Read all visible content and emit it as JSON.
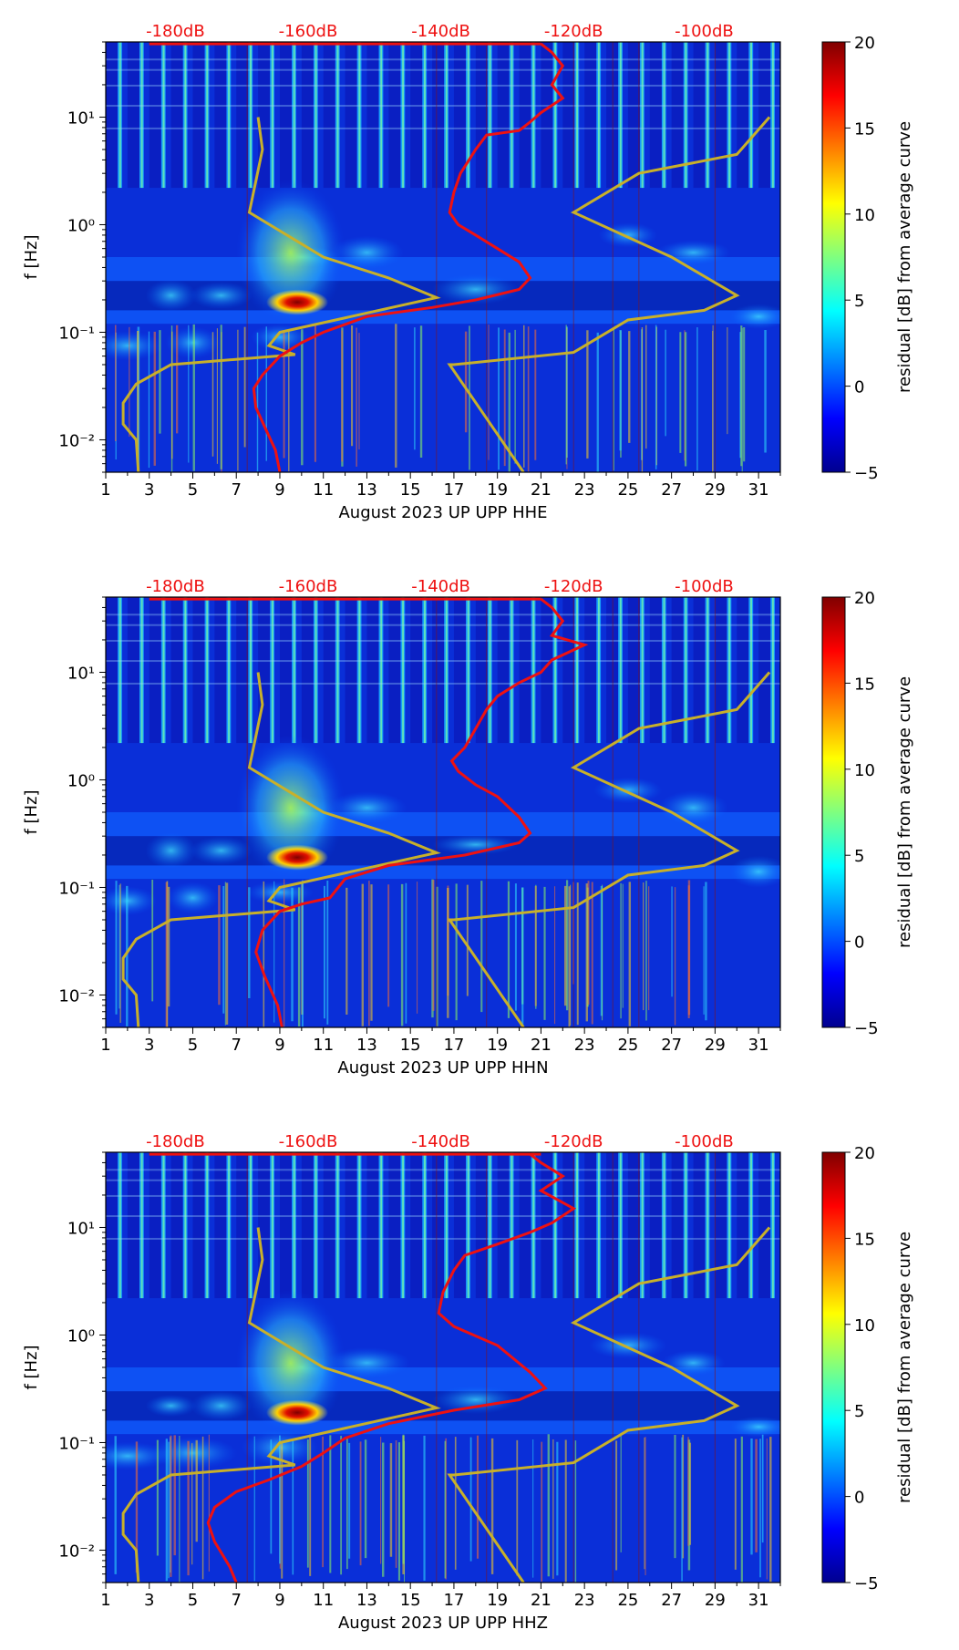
{
  "colors": {
    "psd_curve": "#ee1111",
    "noise_model": "#c8b02a",
    "db_label": "#ee1111",
    "low": "#00008f",
    "high": "#800000"
  },
  "colorbar": {
    "label": "residual [dB] from average curve",
    "range": [
      -5,
      20
    ],
    "ticks": [
      "20",
      "15",
      "10",
      "5",
      "0",
      "−5"
    ]
  },
  "chart_data": [
    {
      "type": "heatmap",
      "title": "",
      "xlabel": "August 2023 UP UPP  HHE",
      "ylabel": "f [Hz]",
      "x_range": [
        1,
        32
      ],
      "y_range_hz": [
        0.005,
        50
      ],
      "y_scale": "log",
      "x_tick_labels": [
        "1",
        "3",
        "5",
        "7",
        "9",
        "11",
        "13",
        "15",
        "17",
        "19",
        "21",
        "23",
        "25",
        "27",
        "29",
        "31"
      ],
      "y_tick_labels": [
        "10⁻²",
        "10⁻¹",
        "10⁰",
        "10¹"
      ],
      "db_axis_labels": [
        "-180dB",
        "-160dB",
        "-140dB",
        "-120dB",
        "-100dB"
      ],
      "hot_spot": {
        "day": 9.8,
        "freq_hz": 0.19,
        "value_db": 20
      },
      "psd_curve": {
        "name": "average PSD",
        "points": [
          [
            21,
            48
          ],
          [
            21.5,
            40
          ],
          [
            22,
            30
          ],
          [
            21.5,
            20
          ],
          [
            22,
            15
          ],
          [
            21,
            11
          ],
          [
            20.5,
            9
          ],
          [
            20,
            7.5
          ],
          [
            18.5,
            6.8
          ],
          [
            18,
            5
          ],
          [
            17.3,
            3
          ],
          [
            17,
            2
          ],
          [
            16.8,
            1.3
          ],
          [
            17.2,
            1
          ],
          [
            18,
            0.8
          ],
          [
            19,
            0.6
          ],
          [
            20,
            0.45
          ],
          [
            20.5,
            0.32
          ],
          [
            20,
            0.25
          ],
          [
            18,
            0.2
          ],
          [
            16,
            0.17
          ],
          [
            13,
            0.14
          ],
          [
            11,
            0.1
          ],
          [
            10,
            0.08
          ],
          [
            9,
            0.06
          ],
          [
            8.2,
            0.04
          ],
          [
            7.8,
            0.03
          ],
          [
            7.9,
            0.02
          ],
          [
            8.4,
            0.012
          ],
          [
            8.8,
            0.008
          ],
          [
            9,
            0.005
          ]
        ]
      },
      "noise_models": [
        {
          "name": "low noise model",
          "points": [
            [
              8,
              10
            ],
            [
              8.2,
              5
            ],
            [
              7.6,
              1.3
            ],
            [
              11,
              0.5
            ],
            [
              14,
              0.32
            ],
            [
              16.2,
              0.21
            ],
            [
              9,
              0.1
            ],
            [
              8.5,
              0.075
            ],
            [
              9.7,
              0.062
            ],
            [
              4,
              0.05
            ],
            [
              2.4,
              0.033
            ],
            [
              1.8,
              0.022
            ],
            [
              1.8,
              0.014
            ],
            [
              2.4,
              0.01
            ],
            [
              2.5,
              0.005
            ]
          ]
        },
        {
          "name": "high noise model",
          "points": [
            [
              31.5,
              10
            ],
            [
              30,
              4.5
            ],
            [
              25.5,
              3
            ],
            [
              22.5,
              1.3
            ],
            [
              27,
              0.5
            ],
            [
              30,
              0.22
            ],
            [
              28.5,
              0.16
            ],
            [
              25,
              0.13
            ],
            [
              22.5,
              0.065
            ],
            [
              17,
              0.05
            ],
            [
              16.8,
              0.05
            ],
            [
              20.2,
              0.005
            ]
          ]
        }
      ]
    },
    {
      "type": "heatmap",
      "title": "",
      "xlabel": "August 2023 UP UPP  HHN",
      "ylabel": "f [Hz]",
      "x_range": [
        1,
        32
      ],
      "y_range_hz": [
        0.005,
        50
      ],
      "y_scale": "log",
      "x_tick_labels": [
        "1",
        "3",
        "5",
        "7",
        "9",
        "11",
        "13",
        "15",
        "17",
        "19",
        "21",
        "23",
        "25",
        "27",
        "29",
        "31"
      ],
      "y_tick_labels": [
        "10⁻²",
        "10⁻¹",
        "10⁰",
        "10¹"
      ],
      "db_axis_labels": [
        "-180dB",
        "-160dB",
        "-140dB",
        "-120dB",
        "-100dB"
      ],
      "hot_spot": {
        "day": 9.8,
        "freq_hz": 0.19,
        "value_db": 18
      },
      "psd_curve": {
        "name": "average PSD",
        "points": [
          [
            21,
            48
          ],
          [
            21.5,
            40
          ],
          [
            22,
            30
          ],
          [
            21.5,
            22
          ],
          [
            23,
            18
          ],
          [
            21.5,
            13
          ],
          [
            21,
            10
          ],
          [
            20,
            8
          ],
          [
            19,
            6
          ],
          [
            18.5,
            4.5
          ],
          [
            18,
            3
          ],
          [
            17.5,
            2
          ],
          [
            16.9,
            1.5
          ],
          [
            17.2,
            1.2
          ],
          [
            18,
            0.9
          ],
          [
            19,
            0.7
          ],
          [
            20,
            0.45
          ],
          [
            20.5,
            0.32
          ],
          [
            20,
            0.26
          ],
          [
            17.5,
            0.2
          ],
          [
            14,
            0.16
          ],
          [
            12,
            0.12
          ],
          [
            11.3,
            0.08
          ],
          [
            10,
            0.07
          ],
          [
            9,
            0.06
          ],
          [
            8.2,
            0.04
          ],
          [
            7.9,
            0.025
          ],
          [
            8.3,
            0.015
          ],
          [
            8.9,
            0.008
          ],
          [
            9.1,
            0.005
          ]
        ]
      },
      "noise_models": [
        {
          "name": "low noise model",
          "points": [
            [
              8,
              10
            ],
            [
              8.2,
              5
            ],
            [
              7.6,
              1.3
            ],
            [
              11,
              0.5
            ],
            [
              14,
              0.32
            ],
            [
              16.2,
              0.21
            ],
            [
              9,
              0.1
            ],
            [
              8.5,
              0.075
            ],
            [
              9.7,
              0.062
            ],
            [
              4,
              0.05
            ],
            [
              2.4,
              0.033
            ],
            [
              1.8,
              0.022
            ],
            [
              1.8,
              0.014
            ],
            [
              2.4,
              0.01
            ],
            [
              2.5,
              0.005
            ]
          ]
        },
        {
          "name": "high noise model",
          "points": [
            [
              31.5,
              10
            ],
            [
              30,
              4.5
            ],
            [
              25.5,
              3
            ],
            [
              22.5,
              1.3
            ],
            [
              27,
              0.5
            ],
            [
              30,
              0.22
            ],
            [
              28.5,
              0.16
            ],
            [
              25,
              0.13
            ],
            [
              22.5,
              0.065
            ],
            [
              17,
              0.05
            ],
            [
              16.8,
              0.05
            ],
            [
              20.2,
              0.005
            ]
          ]
        }
      ]
    },
    {
      "type": "heatmap",
      "title": "",
      "xlabel": "August 2023 UP UPP  HHZ",
      "ylabel": "f [Hz]",
      "x_range": [
        1,
        32
      ],
      "y_range_hz": [
        0.005,
        50
      ],
      "y_scale": "log",
      "x_tick_labels": [
        "1",
        "3",
        "5",
        "7",
        "9",
        "11",
        "13",
        "15",
        "17",
        "19",
        "21",
        "23",
        "25",
        "27",
        "29",
        "31"
      ],
      "y_tick_labels": [
        "10⁻²",
        "10⁻¹",
        "10⁰",
        "10¹"
      ],
      "db_axis_labels": [
        "-180dB",
        "-160dB",
        "-140dB",
        "-120dB",
        "-100dB"
      ],
      "hot_spot": {
        "day": 9.8,
        "freq_hz": 0.19,
        "value_db": 20
      },
      "psd_curve": {
        "name": "average PSD",
        "points": [
          [
            20.5,
            48
          ],
          [
            21,
            40
          ],
          [
            22,
            30
          ],
          [
            21,
            22
          ],
          [
            22.5,
            15
          ],
          [
            21.5,
            11
          ],
          [
            20.5,
            9
          ],
          [
            19,
            7
          ],
          [
            17.5,
            5.5
          ],
          [
            17,
            4
          ],
          [
            16.5,
            2.5
          ],
          [
            16.3,
            1.6
          ],
          [
            17,
            1.2
          ],
          [
            19,
            0.8
          ],
          [
            20.5,
            0.45
          ],
          [
            21.2,
            0.32
          ],
          [
            20,
            0.25
          ],
          [
            17,
            0.2
          ],
          [
            14,
            0.15
          ],
          [
            12,
            0.11
          ],
          [
            11,
            0.08
          ],
          [
            10,
            0.06
          ],
          [
            8.5,
            0.045
          ],
          [
            7,
            0.035
          ],
          [
            6,
            0.025
          ],
          [
            5.7,
            0.018
          ],
          [
            6,
            0.012
          ],
          [
            6.7,
            0.007
          ],
          [
            7,
            0.005
          ]
        ]
      },
      "noise_models": [
        {
          "name": "low noise model",
          "points": [
            [
              8,
              10
            ],
            [
              8.2,
              5
            ],
            [
              7.6,
              1.3
            ],
            [
              11,
              0.5
            ],
            [
              14,
              0.32
            ],
            [
              16.2,
              0.21
            ],
            [
              9,
              0.1
            ],
            [
              8.5,
              0.075
            ],
            [
              9.7,
              0.062
            ],
            [
              4,
              0.05
            ],
            [
              2.4,
              0.033
            ],
            [
              1.8,
              0.022
            ],
            [
              1.8,
              0.014
            ],
            [
              2.4,
              0.01
            ],
            [
              2.5,
              0.005
            ]
          ]
        },
        {
          "name": "high noise model",
          "points": [
            [
              31.5,
              10
            ],
            [
              30,
              4.5
            ],
            [
              25.5,
              3
            ],
            [
              22.5,
              1.3
            ],
            [
              27,
              0.5
            ],
            [
              30,
              0.22
            ],
            [
              28.5,
              0.16
            ],
            [
              25,
              0.13
            ],
            [
              22.5,
              0.065
            ],
            [
              17,
              0.05
            ],
            [
              16.8,
              0.05
            ],
            [
              20.2,
              0.005
            ]
          ]
        }
      ]
    }
  ]
}
